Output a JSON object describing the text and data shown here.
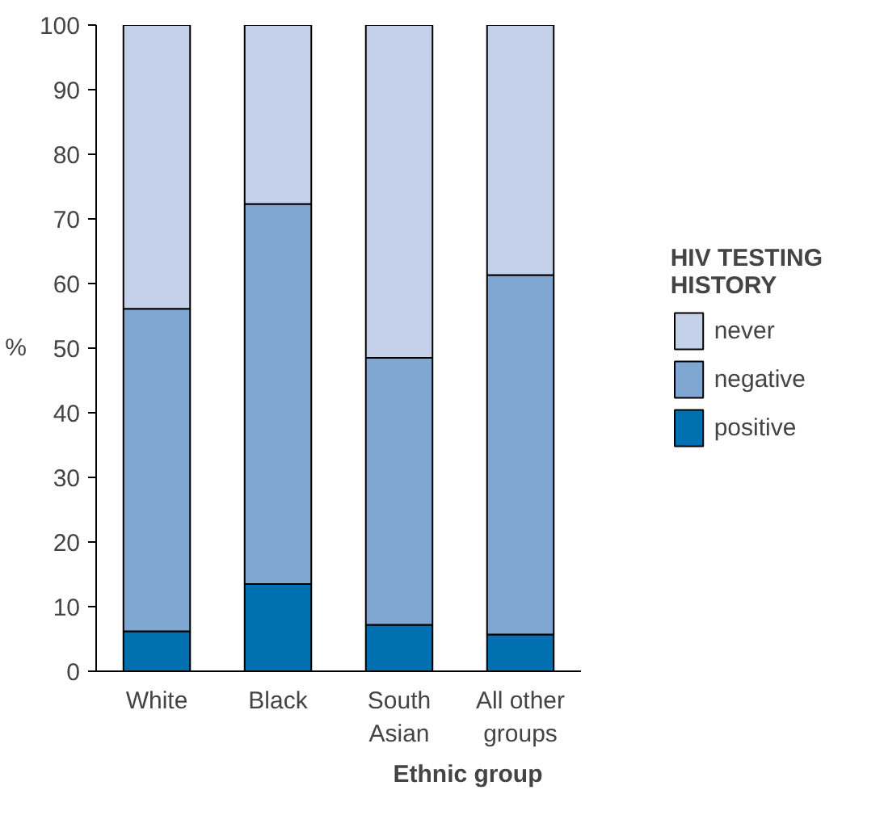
{
  "chart_data": {
    "type": "bar",
    "stacked": true,
    "xlabel": "Ethnic group",
    "ylabel": "%",
    "legend_title": "HIV TESTING HISTORY",
    "legend": "right",
    "categories": [
      "White",
      "Black",
      "South Asian",
      "All other groups"
    ],
    "series": [
      {
        "name": "positive",
        "color": "#0070b0",
        "values": [
          6.2,
          13.5,
          7.2,
          5.7
        ]
      },
      {
        "name": "negative",
        "color": "#80a6d2",
        "values": [
          49.9,
          58.8,
          41.3,
          55.6
        ]
      },
      {
        "name": "never",
        "color": "#c5d1e9",
        "values": [
          43.9,
          27.7,
          51.5,
          38.7
        ]
      }
    ],
    "ylim": [
      0,
      100
    ],
    "yticks": [
      0,
      10,
      20,
      30,
      40,
      50,
      60,
      70,
      80,
      90,
      100
    ]
  }
}
